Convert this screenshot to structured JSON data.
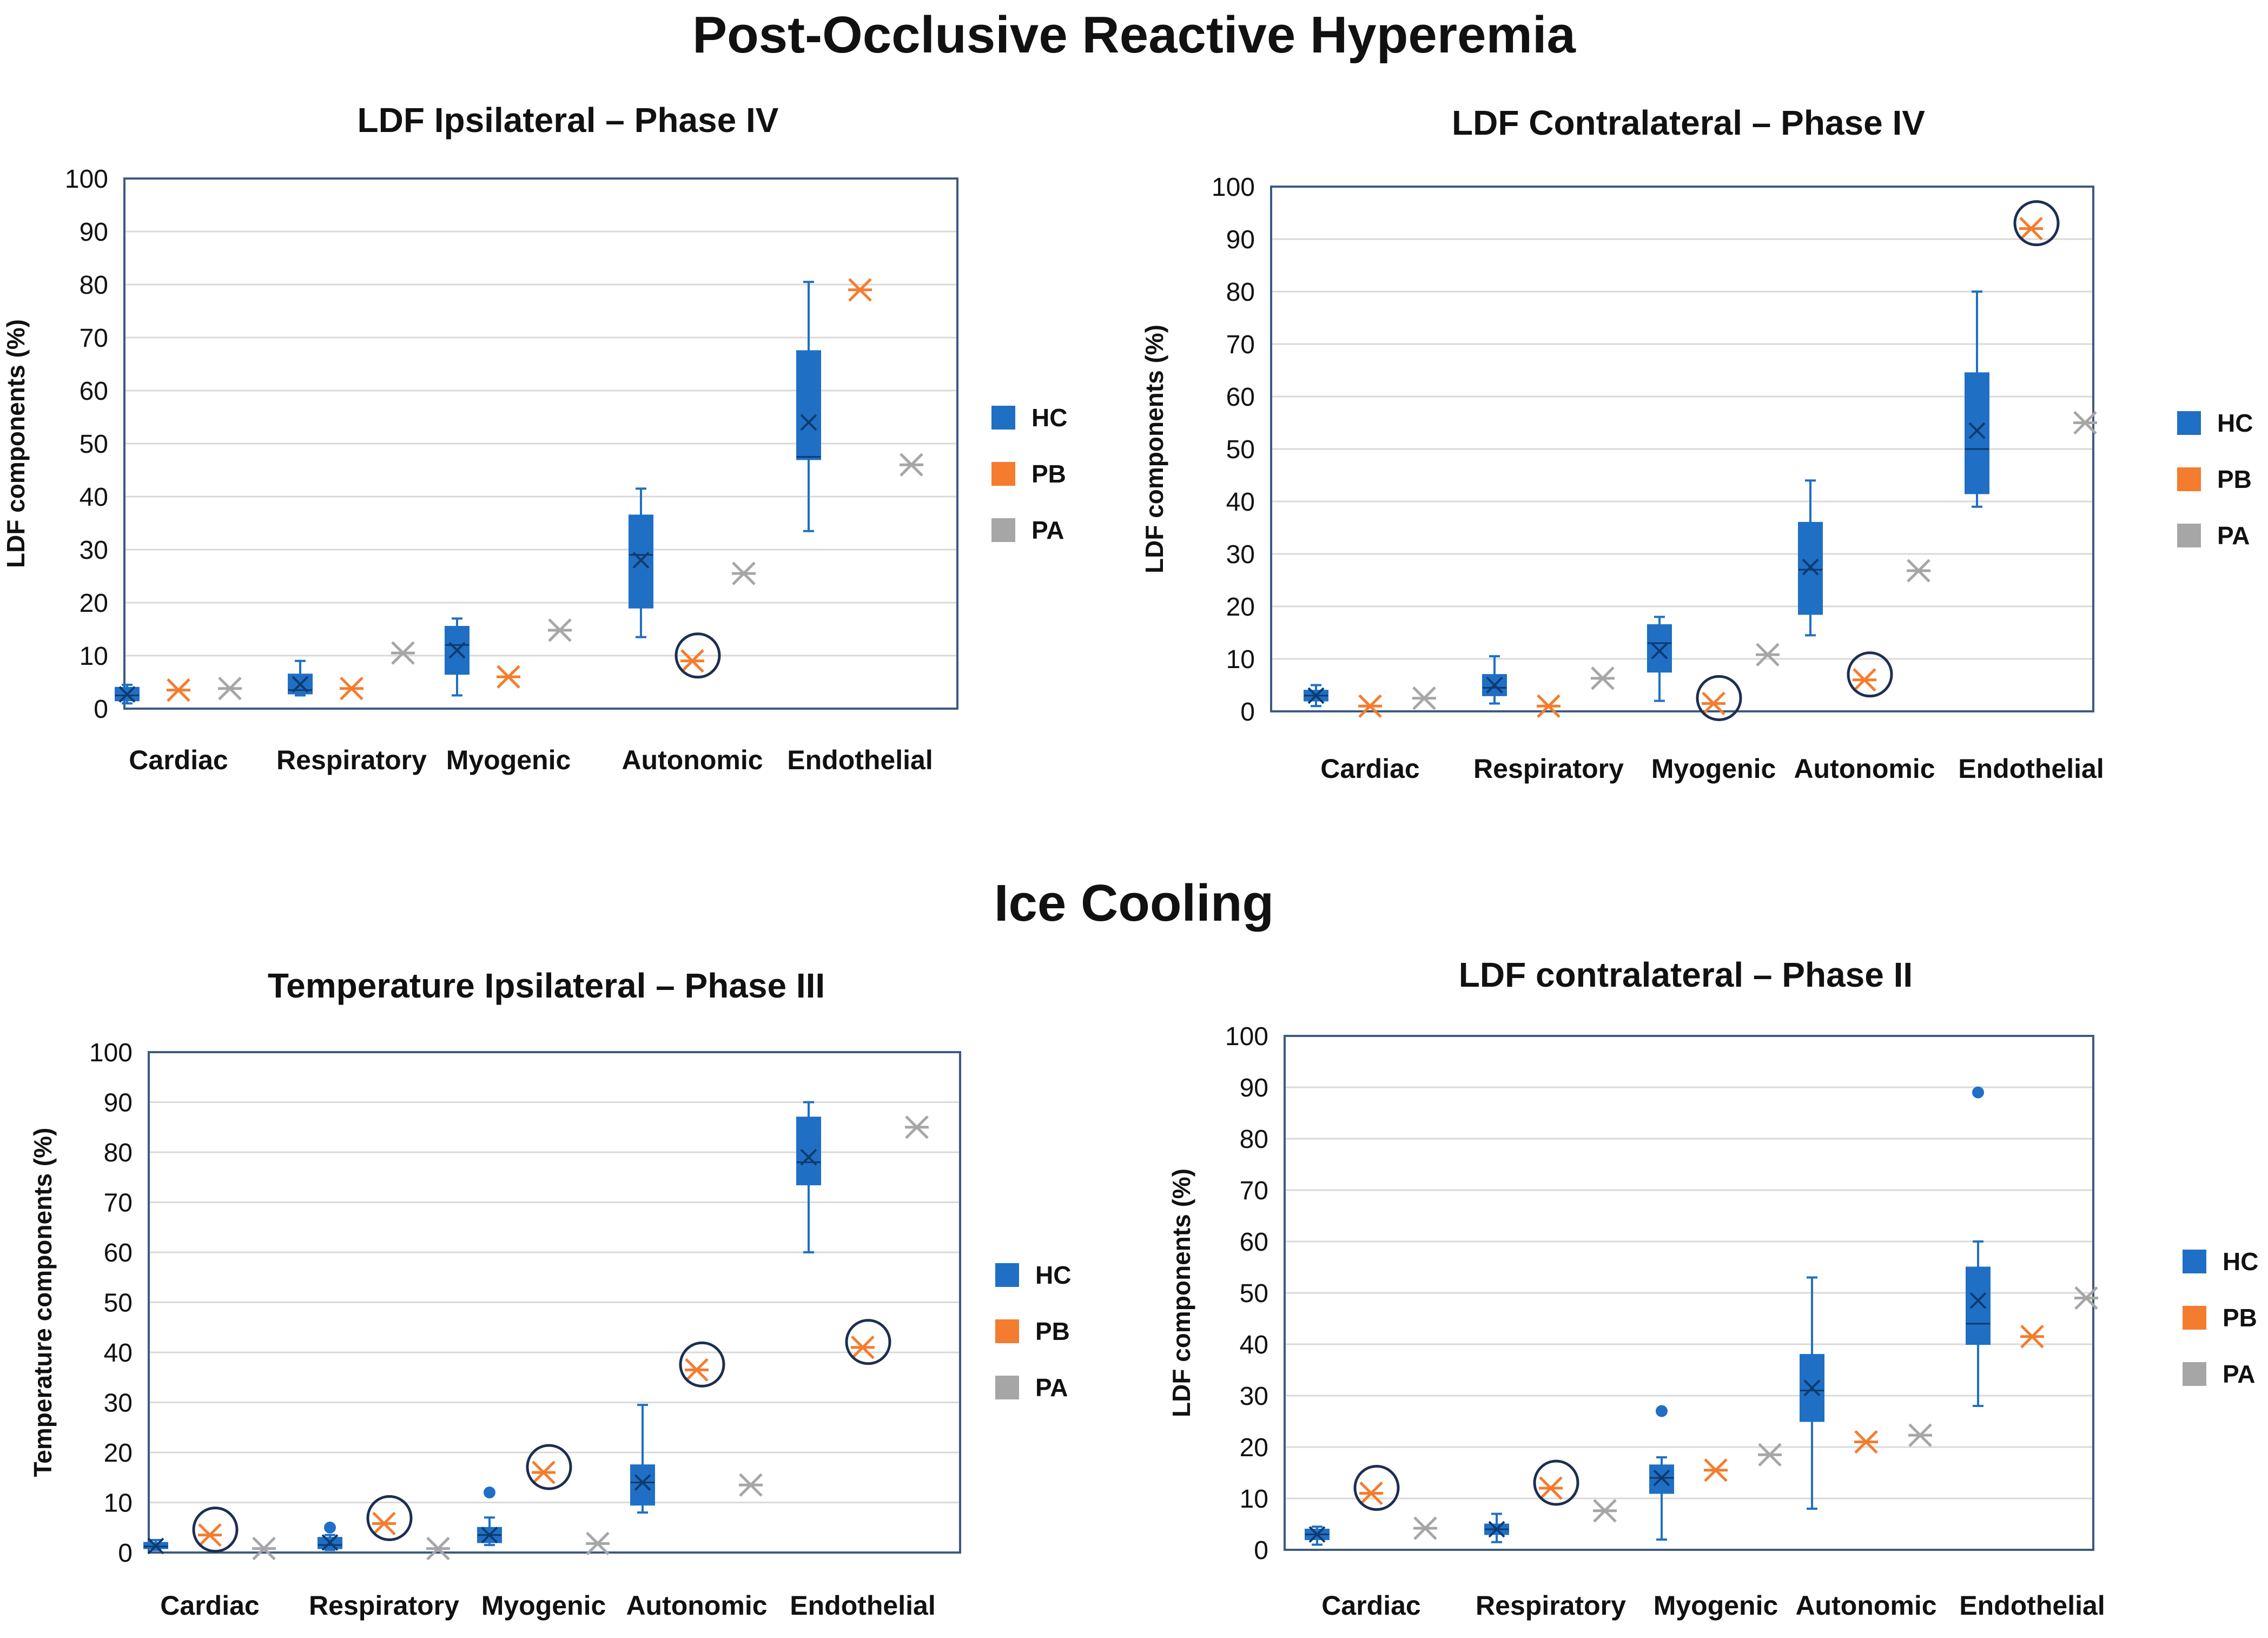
{
  "sections": {
    "por": {
      "title": "Post-Occlusive Reactive Hyperemia"
    },
    "ice": {
      "title": "Ice Cooling"
    }
  },
  "legend": [
    {
      "key": "HC",
      "label": "HC",
      "color": "#1f6fc5"
    },
    {
      "key": "PB",
      "label": "PB",
      "color": "#f47c2e"
    },
    {
      "key": "PA",
      "label": "PA",
      "color": "#a6a6a6"
    }
  ],
  "chart_data": [
    {
      "type": "box",
      "title": "LDF Ipsilateral – Phase IV",
      "ylabel": "LDF components (%)",
      "xlabel": "",
      "ylim": [
        0,
        100
      ],
      "yticks": [
        0,
        10,
        20,
        30,
        40,
        50,
        60,
        70,
        80,
        90,
        100
      ],
      "grid": true,
      "legend_position": "right",
      "categories": [
        "Cardiac",
        "Respiratory",
        "Myogenic",
        "Autonomic",
        "Endothelial"
      ],
      "HC_boxes": [
        {
          "min": 1,
          "q1": 1.5,
          "median": 2.5,
          "q3": 4,
          "max": 4.5,
          "mean": 2.7,
          "outliers": []
        },
        {
          "min": 2.5,
          "q1": 2.8,
          "median": 3.5,
          "q3": 6.5,
          "max": 9,
          "mean": 4.6,
          "outliers": []
        },
        {
          "min": 2.5,
          "q1": 6.5,
          "median": 12,
          "q3": 15.5,
          "max": 17,
          "mean": 11,
          "outliers": []
        },
        {
          "min": 13.5,
          "q1": 19,
          "median": 29,
          "q3": 36.5,
          "max": 41.5,
          "mean": 28,
          "outliers": []
        },
        {
          "min": 33.5,
          "q1": 47,
          "median": 47.5,
          "q3": 67.5,
          "max": 80.5,
          "mean": 54,
          "outliers": []
        }
      ],
      "PB": [
        3.5,
        3.8,
        6,
        9,
        79
      ],
      "PA": [
        3.8,
        10.5,
        14.8,
        25.5,
        46
      ],
      "PB_circled": [
        false,
        false,
        false,
        true,
        false
      ]
    },
    {
      "type": "box",
      "title": "LDF Contralateral – Phase IV",
      "ylabel": "LDF components (%)",
      "xlabel": "",
      "ylim": [
        0,
        100
      ],
      "yticks": [
        0,
        10,
        20,
        30,
        40,
        50,
        60,
        70,
        80,
        90,
        100
      ],
      "grid": true,
      "legend_position": "right",
      "categories": [
        "Cardiac",
        "Respiratory",
        "Myogenic",
        "Autonomic",
        "Endothelial"
      ],
      "HC_boxes": [
        {
          "min": 1,
          "q1": 2,
          "median": 3,
          "q3": 4,
          "max": 5,
          "mean": 3,
          "outliers": []
        },
        {
          "min": 1.5,
          "q1": 3,
          "median": 4.5,
          "q3": 7,
          "max": 10.5,
          "mean": 5,
          "outliers": []
        },
        {
          "min": 2,
          "q1": 7.5,
          "median": 13,
          "q3": 16.5,
          "max": 18,
          "mean": 11.5,
          "outliers": []
        },
        {
          "min": 14.5,
          "q1": 18.5,
          "median": 27,
          "q3": 36,
          "max": 44,
          "mean": 27.5,
          "outliers": []
        },
        {
          "min": 39,
          "q1": 41.5,
          "median": 50,
          "q3": 64.5,
          "max": 80,
          "mean": 53.5,
          "outliers": []
        }
      ],
      "PB": [
        1,
        1,
        1.5,
        6,
        92
      ],
      "PA": [
        2.5,
        6.3,
        10.8,
        26.8,
        55
      ],
      "PB_circled": [
        false,
        false,
        true,
        true,
        true
      ]
    },
    {
      "type": "box",
      "title": "Temperature Ipsilateral – Phase III",
      "ylabel": "Temperature components (%)",
      "xlabel": "",
      "ylim": [
        0,
        100
      ],
      "yticks": [
        0,
        10,
        20,
        30,
        40,
        50,
        60,
        70,
        80,
        90,
        100
      ],
      "grid": true,
      "legend_position": "right",
      "categories": [
        "Cardiac",
        "Respiratory",
        "Myogenic",
        "Autonomic",
        "Endothelial"
      ],
      "HC_boxes": [
        {
          "min": 0.5,
          "q1": 0.8,
          "median": 1.2,
          "q3": 2,
          "max": 2.5,
          "mean": 1.3,
          "outliers": []
        },
        {
          "min": 0.5,
          "q1": 0.8,
          "median": 1.5,
          "q3": 3,
          "max": 3.5,
          "mean": 2,
          "outliers": [
            5
          ]
        },
        {
          "min": 1.5,
          "q1": 2,
          "median": 3.5,
          "q3": 5,
          "max": 7,
          "mean": 3.5,
          "outliers": [
            12
          ]
        },
        {
          "min": 8,
          "q1": 9.5,
          "median": 14,
          "q3": 17.5,
          "max": 29.5,
          "mean": 14,
          "outliers": []
        },
        {
          "min": 60,
          "q1": 73.5,
          "median": 78,
          "q3": 87,
          "max": 90,
          "mean": 79,
          "outliers": []
        }
      ],
      "PB": [
        3.5,
        5.8,
        16,
        36.5,
        41
      ],
      "PA": [
        0.8,
        0.8,
        1.8,
        13.5,
        85
      ],
      "PB_circled": [
        true,
        true,
        true,
        true,
        true
      ]
    },
    {
      "type": "box",
      "title": "LDF contralateral – Phase II",
      "ylabel": "LDF components (%)",
      "xlabel": "",
      "ylim": [
        0,
        100
      ],
      "yticks": [
        0,
        10,
        20,
        30,
        40,
        50,
        60,
        70,
        80,
        90,
        100
      ],
      "grid": true,
      "legend_position": "right",
      "categories": [
        "Cardiac",
        "Respiratory",
        "Myogenic",
        "Autonomic",
        "Endothelial"
      ],
      "HC_boxes": [
        {
          "min": 1,
          "q1": 2,
          "median": 3,
          "q3": 4,
          "max": 4.5,
          "mean": 3,
          "outliers": []
        },
        {
          "min": 1.5,
          "q1": 3,
          "median": 4,
          "q3": 5,
          "max": 7,
          "mean": 4,
          "outliers": []
        },
        {
          "min": 2,
          "q1": 11,
          "median": 14,
          "q3": 16.5,
          "max": 18,
          "mean": 14,
          "outliers": [
            27
          ]
        },
        {
          "min": 8,
          "q1": 25,
          "median": 31,
          "q3": 38,
          "max": 53,
          "mean": 31.5,
          "outliers": []
        },
        {
          "min": 28,
          "q1": 40,
          "median": 44,
          "q3": 55,
          "max": 60,
          "mean": 48.5,
          "outliers": [
            89
          ]
        }
      ],
      "PB": [
        11,
        12,
        15.5,
        21,
        41.5
      ],
      "PA": [
        4.2,
        7.6,
        18.5,
        22.3,
        49
      ],
      "PB_circled": [
        true,
        true,
        false,
        false,
        false
      ]
    }
  ]
}
